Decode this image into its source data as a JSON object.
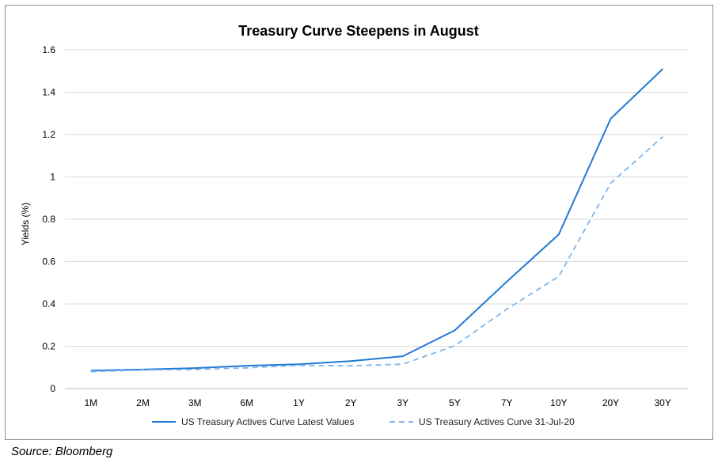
{
  "chart_data": {
    "type": "line",
    "title": "Treasury Curve Steepens in August",
    "ylabel": "Yields (%)",
    "xlabel": "",
    "ylim": [
      0,
      1.6
    ],
    "y_ticks": [
      "0",
      "0.2",
      "0.4",
      "0.6",
      "0.8",
      "1",
      "1.2",
      "1.4",
      "1.6"
    ],
    "categories": [
      "1M",
      "2M",
      "3M",
      "6M",
      "1Y",
      "2Y",
      "3Y",
      "5Y",
      "7Y",
      "10Y",
      "20Y",
      "30Y"
    ],
    "grid": true,
    "legend_position": "bottom",
    "series": [
      {
        "name": "US Treasury Actives Curve Latest Values",
        "style": "solid",
        "color": "#1f7ad6",
        "values": [
          0.085,
          0.09,
          0.097,
          0.108,
          0.115,
          0.13,
          0.153,
          0.275,
          0.505,
          0.728,
          1.275,
          1.51
        ]
      },
      {
        "name": "US Treasury Actives Curve 31-Jul-20",
        "style": "dashed",
        "color": "#7fb5ea",
        "values": [
          0.08,
          0.088,
          0.09,
          0.098,
          0.11,
          0.108,
          0.115,
          0.203,
          0.375,
          0.53,
          0.97,
          1.19
        ]
      }
    ]
  },
  "source_note": "Source: Bloomberg"
}
